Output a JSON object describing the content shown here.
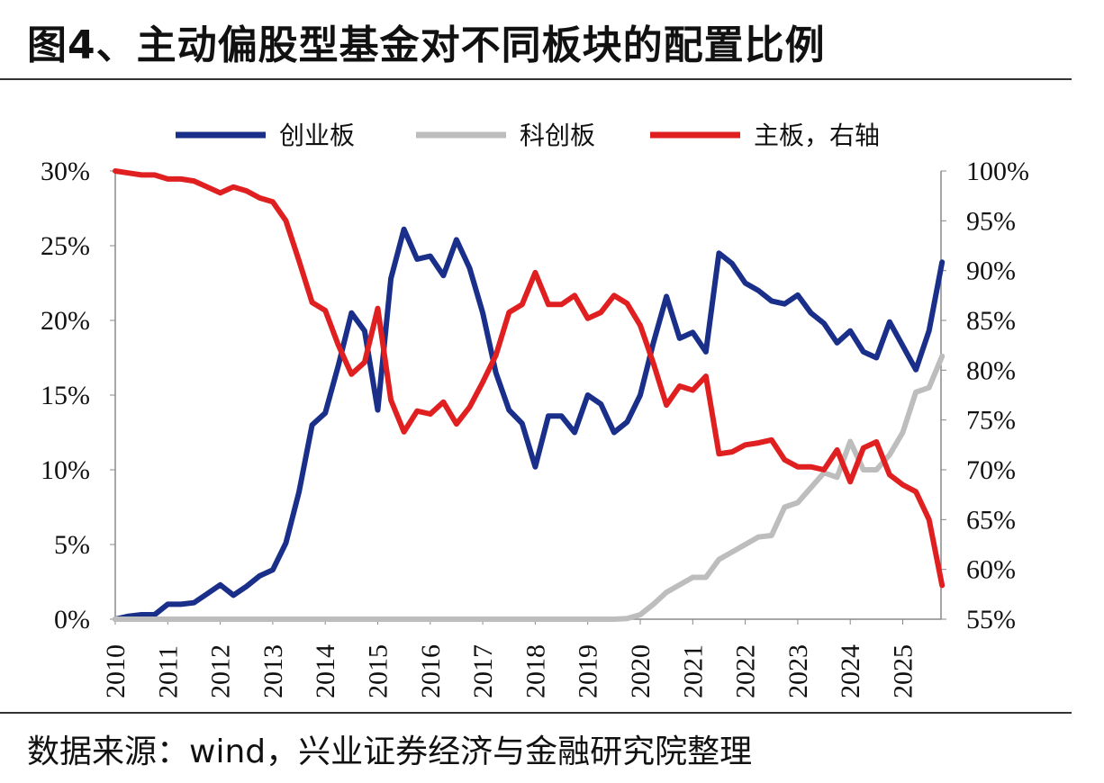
{
  "title": "图4、主动偏股型基金对不同板块的配置比例",
  "source": "数据来源：wind，兴业证券经济与金融研究院整理",
  "chart_data": {
    "type": "line",
    "x_tick_labels": [
      "2010",
      "2011",
      "2012",
      "2013",
      "2014",
      "2015",
      "2016",
      "2017",
      "2018",
      "2019",
      "2020",
      "2021",
      "2022",
      "2023",
      "2024",
      "2025"
    ],
    "x_frequency": "quarterly",
    "x_start": "2010Q1",
    "left_axis": {
      "ylim": [
        0,
        30
      ],
      "tick_labels": [
        "0%",
        "5%",
        "10%",
        "15%",
        "20%",
        "25%",
        "30%"
      ]
    },
    "right_axis": {
      "ylim": [
        55,
        100
      ],
      "tick_labels": [
        "55%",
        "60%",
        "65%",
        "70%",
        "75%",
        "80%",
        "85%",
        "90%",
        "95%",
        "100%"
      ]
    },
    "legend_placement": "top",
    "grid": false,
    "series": [
      {
        "name": "创业板",
        "axis": "left",
        "color": "#1a2f8a",
        "values": [
          0,
          0.2,
          0.3,
          0.3,
          1.0,
          1.0,
          1.1,
          1.7,
          2.3,
          1.6,
          2.2,
          2.9,
          3.3,
          5.1,
          8.5,
          13.0,
          13.8,
          17.0,
          20.5,
          19.3,
          14.0,
          22.8,
          26.1,
          24.1,
          24.3,
          23.0,
          25.4,
          23.5,
          20.5,
          16.5,
          14.0,
          13.1,
          10.2,
          13.6,
          13.6,
          12.5,
          15.0,
          14.4,
          12.5,
          13.2,
          15.0,
          18.5,
          21.6,
          18.8,
          19.2,
          17.9,
          24.5,
          23.8,
          22.5,
          22.0,
          21.3,
          21.1,
          21.7,
          20.5,
          19.8,
          18.5,
          19.3,
          17.9,
          17.5,
          19.9,
          18.3,
          16.7,
          19.3,
          23.9
        ]
      },
      {
        "name": "科创板",
        "axis": "left",
        "color": "#bdbdbd",
        "values": [
          0,
          0,
          0,
          0,
          0,
          0,
          0,
          0,
          0,
          0,
          0,
          0,
          0,
          0,
          0,
          0,
          0,
          0,
          0,
          0,
          0,
          0,
          0,
          0,
          0,
          0,
          0,
          0,
          0,
          0,
          0,
          0,
          0,
          0,
          0,
          0,
          0,
          0,
          0,
          0.05,
          0.3,
          1.0,
          1.8,
          2.3,
          2.8,
          2.8,
          4.0,
          4.5,
          5.0,
          5.5,
          5.6,
          7.5,
          7.8,
          8.8,
          9.8,
          9.5,
          11.9,
          10.0,
          10.0,
          11.0,
          12.5,
          15.2,
          15.5,
          17.6
        ]
      },
      {
        "name": "主板，右轴",
        "axis": "right",
        "color": "#e02020",
        "values": [
          100,
          99.8,
          99.6,
          99.6,
          99.2,
          99.2,
          99.0,
          98.4,
          97.8,
          98.4,
          98.0,
          97.3,
          96.9,
          95.0,
          91.0,
          86.8,
          86.0,
          82.5,
          79.6,
          80.8,
          86.2,
          77.0,
          73.8,
          75.9,
          75.6,
          76.8,
          74.6,
          76.3,
          78.8,
          81.5,
          85.8,
          86.6,
          89.8,
          86.6,
          86.6,
          87.5,
          85.2,
          85.8,
          87.5,
          86.7,
          84.5,
          80.7,
          76.5,
          78.4,
          78.0,
          79.4,
          71.6,
          71.8,
          72.5,
          72.7,
          73.0,
          71.0,
          70.3,
          70.3,
          70.0,
          72.0,
          68.8,
          72.2,
          72.8,
          69.5,
          68.5,
          67.8,
          65.0,
          58.4
        ]
      }
    ]
  }
}
